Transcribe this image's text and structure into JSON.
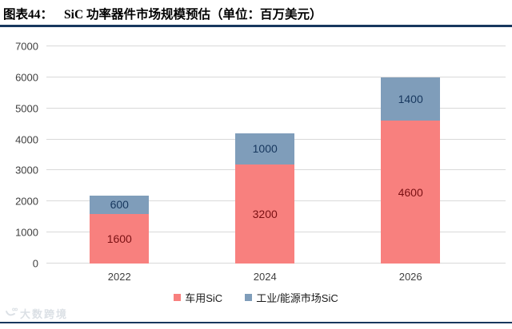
{
  "header": {
    "label": "图表44：",
    "title": "SiC 功率器件市场规模预估（单位：百万美元）"
  },
  "chart_data": {
    "type": "bar",
    "stacked": true,
    "title": "SiC 功率器件市场规模预估",
    "unit": "百万美元",
    "categories": [
      "2022",
      "2024",
      "2026"
    ],
    "series": [
      {
        "name": "车用SiC",
        "values": [
          1600,
          3200,
          4600
        ],
        "color": "#f8807e",
        "label_color": "#7a1013"
      },
      {
        "name": "工业/能源市场SiC",
        "values": [
          600,
          1000,
          1400
        ],
        "color": "#7f9dba",
        "label_color": "#17375e"
      }
    ],
    "totals": [
      2200,
      4200,
      6000
    ],
    "ylim": [
      0,
      7000
    ],
    "ytick_step": 1000,
    "grid": true,
    "legend_position": "bottom"
  },
  "colors": {
    "rule": "#17375e",
    "grid": "#d9d9d9",
    "axis_text": "#3f3f3f"
  },
  "watermark": {
    "text": "大数跨境"
  }
}
